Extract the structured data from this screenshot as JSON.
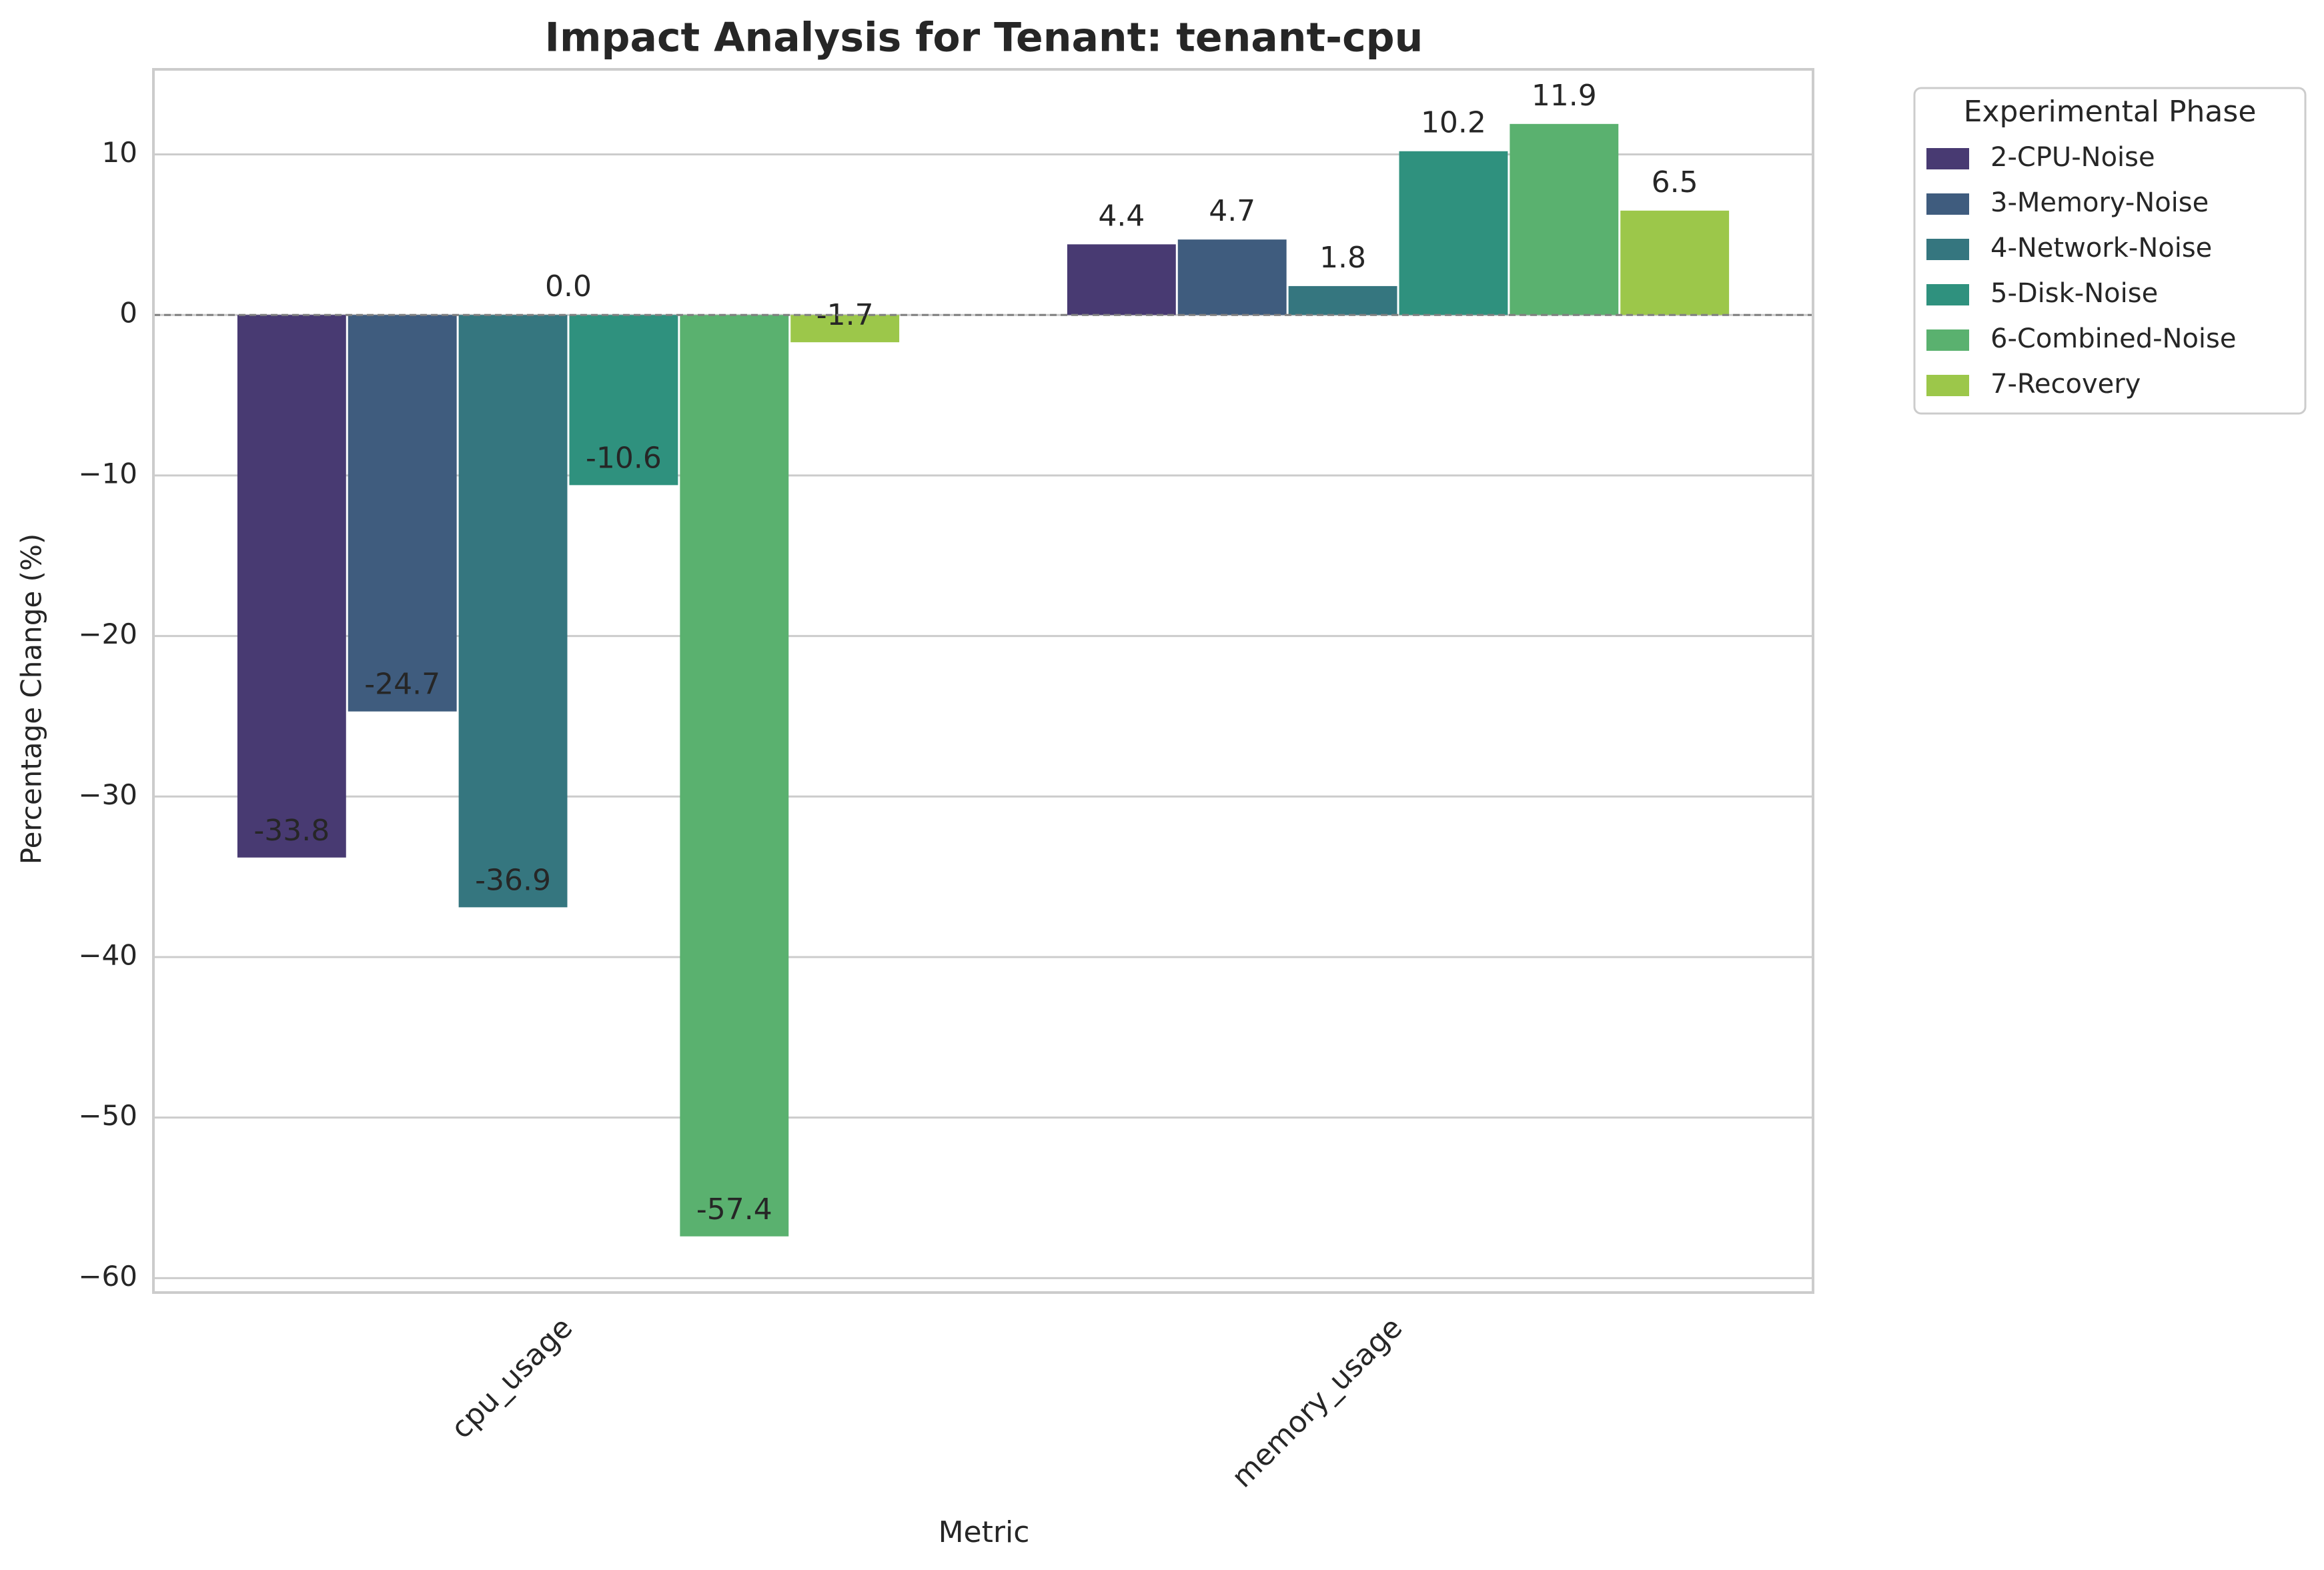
{
  "chart_data": {
    "type": "bar",
    "title": "Impact Analysis for Tenant: tenant-cpu",
    "xlabel": "Metric",
    "ylabel": "Percentage Change (%)",
    "categories": [
      "cpu_usage",
      "memory_usage"
    ],
    "ylim": [
      -60.9,
      15.3
    ],
    "yticks": [
      10,
      0,
      -10,
      -20,
      -30,
      -40,
      -50,
      -60
    ],
    "ytick_labels": [
      "10",
      "0",
      "−10",
      "−20",
      "−30",
      "−40",
      "−50",
      "−60"
    ],
    "grid": true,
    "zero_reference_line": "dashed",
    "legend": {
      "title": "Experimental Phase",
      "placement": "outside-right-top"
    },
    "series": [
      {
        "name": "2-CPU-Noise",
        "color": "#483a72",
        "values": [
          -33.8,
          4.4
        ],
        "labels": [
          "-33.8",
          "4.4"
        ]
      },
      {
        "name": "3-Memory-Noise",
        "color": "#3f5c7e",
        "values": [
          -24.7,
          4.7
        ],
        "labels": [
          "-24.7",
          "4.7"
        ]
      },
      {
        "name": "4-Network-Noise",
        "color": "#35767f",
        "values": [
          -36.9,
          1.8
        ],
        "labels": [
          "-36.9",
          "1.8"
        ]
      },
      {
        "name": "5-Disk-Noise",
        "color": "#2f917e",
        "values": [
          -10.6,
          10.2
        ],
        "labels": [
          "-10.6",
          "10.2"
        ]
      },
      {
        "name": "6-Combined-Noise",
        "color": "#5ab16f",
        "values": [
          -57.4,
          11.9
        ],
        "labels": [
          "-57.4",
          "11.9"
        ]
      },
      {
        "name": "7-Recovery",
        "color": "#9cc74a",
        "values": [
          -1.7,
          6.5
        ],
        "labels": [
          "-1.7",
          "6.5"
        ]
      }
    ],
    "extra_annotations": [
      {
        "category": "cpu_usage",
        "text": "0.0"
      }
    ]
  }
}
